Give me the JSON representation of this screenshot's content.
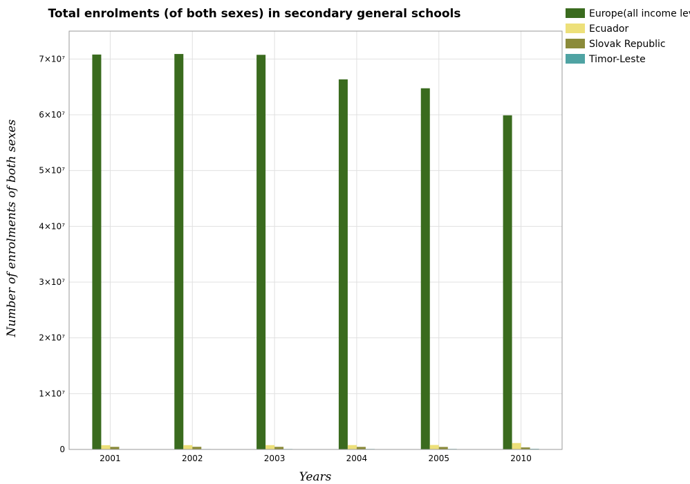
{
  "chart_data": {
    "type": "bar",
    "title": "Total enrolments (of both sexes) in secondary general schools",
    "xlabel": "Years",
    "ylabel": "Number of enrolments of both sexes",
    "categories": [
      "2001",
      "2002",
      "2003",
      "2004",
      "2005",
      "2010"
    ],
    "ylim": [
      0,
      75000000
    ],
    "yticks": [
      0,
      10000000,
      20000000,
      30000000,
      40000000,
      50000000,
      60000000,
      70000000
    ],
    "ytick_labels": [
      "0",
      "1×10⁷",
      "2×10⁷",
      "3×10⁷",
      "4×10⁷",
      "5×10⁷",
      "6×10⁷",
      "7×10⁷"
    ],
    "grid": true,
    "legend_position": "top-right",
    "series": [
      {
        "name": "Europe(all income levels)",
        "color": "#3a6b1e",
        "values": [
          70800000,
          70900000,
          70750000,
          66350000,
          64750000,
          59900000
        ]
      },
      {
        "name": "Ecuador",
        "color": "#ede07a",
        "values": [
          760000,
          770000,
          770000,
          780000,
          800000,
          1150000
        ]
      },
      {
        "name": "Slovak Republic",
        "color": "#8b8b3a",
        "values": [
          460000,
          470000,
          465000,
          455000,
          445000,
          360000
        ]
      },
      {
        "name": "Timor-Leste",
        "color": "#4fa3a3",
        "values": [
          60000,
          70000,
          80000,
          85000,
          90000,
          110000
        ]
      }
    ]
  }
}
